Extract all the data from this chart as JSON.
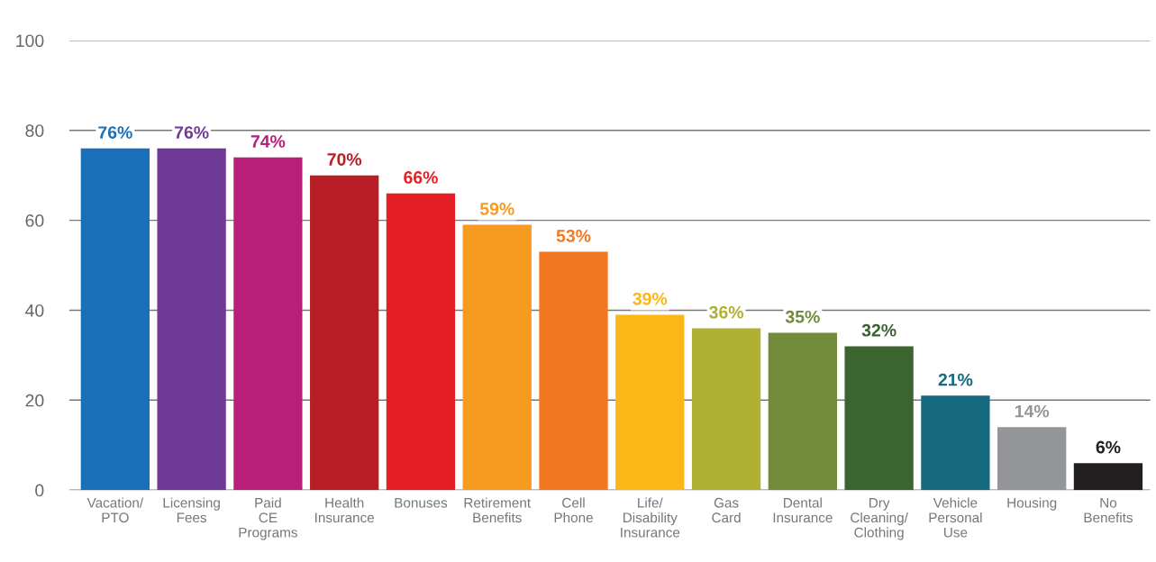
{
  "chart_data": {
    "type": "bar",
    "categories": [
      "Vacation/\nPTO",
      "Licensing\nFees",
      "Paid\nCE\nPrograms",
      "Health\nInsurance",
      "Bonuses",
      "Retirement\nBenefits",
      "Cell\nPhone",
      "Life/\nDisability\nInsurance",
      "Gas\nCard",
      "Dental\nInsurance",
      "Dry\nCleaning/\nClothing",
      "Vehicle\nPersonal\nUse",
      "Housing",
      "No\nBenefits"
    ],
    "values": [
      76,
      76,
      74,
      70,
      66,
      59,
      53,
      39,
      36,
      35,
      32,
      21,
      14,
      6
    ],
    "value_labels": [
      "76%",
      "76%",
      "74%",
      "70%",
      "66%",
      "59%",
      "53%",
      "39%",
      "36%",
      "35%",
      "32%",
      "21%",
      "14%",
      "6%"
    ],
    "colors": [
      "#1a70b8",
      "#6f3a96",
      "#b81f78",
      "#b71e25",
      "#e51e25",
      "#f69b1f",
      "#f27721",
      "#fbb717",
      "#b0b034",
      "#718b3a",
      "#3c6431",
      "#166a80",
      "#949599",
      "#231f20"
    ],
    "ylim": [
      0,
      100
    ],
    "yticks": [
      0,
      20,
      40,
      60,
      80,
      100
    ],
    "grid": "y"
  }
}
